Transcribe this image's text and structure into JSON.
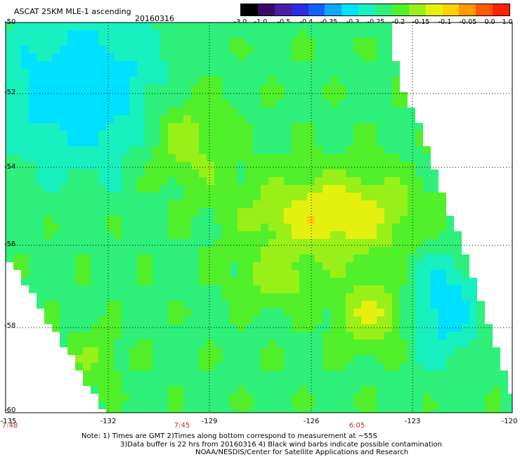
{
  "header": {
    "title": "ASCAT 25KM MLE-1 ascending",
    "date": "20160316"
  },
  "colorbar": {
    "labels": [
      "-3.0",
      "-1.0",
      "-0.5",
      "-0.4",
      "-0.35",
      "-0.3",
      "-0.25",
      "-0.2",
      "-0.15",
      "-0.1",
      "-0.05",
      "0.0",
      "1.0"
    ],
    "colors": [
      "#000000",
      "#3a0a6a",
      "#4b1ca6",
      "#2a2ee0",
      "#1060ff",
      "#10a8ff",
      "#00e0ff",
      "#18f0c0",
      "#2ef07a",
      "#52f02a",
      "#98f018",
      "#e6f010",
      "#ffd000",
      "#ff9a00",
      "#ff5a00",
      "#ff2000"
    ]
  },
  "map": {
    "lat_range": [
      -60,
      -50
    ],
    "lon_range": [
      -135,
      -120
    ],
    "lat_labels": [
      "-50",
      "-52",
      "-54",
      "-56",
      "-58",
      "-60"
    ],
    "lon_labels": [
      "-135",
      "-132",
      "-129",
      "-126",
      "-123",
      "-120"
    ],
    "time_labels": [
      "7:48",
      "7:45",
      "6:05"
    ]
  },
  "notes": {
    "line1": "Note: 1) Times are GMT 2)Times along bottom correspond to measurement at ~55S",
    "line2": "3)Data buffer is 22 hrs from 20160316 4) Black wind barbs indicate possible contamination",
    "line3": "NOAA/NESDIS/Center for Satellite Applications and Research"
  }
}
